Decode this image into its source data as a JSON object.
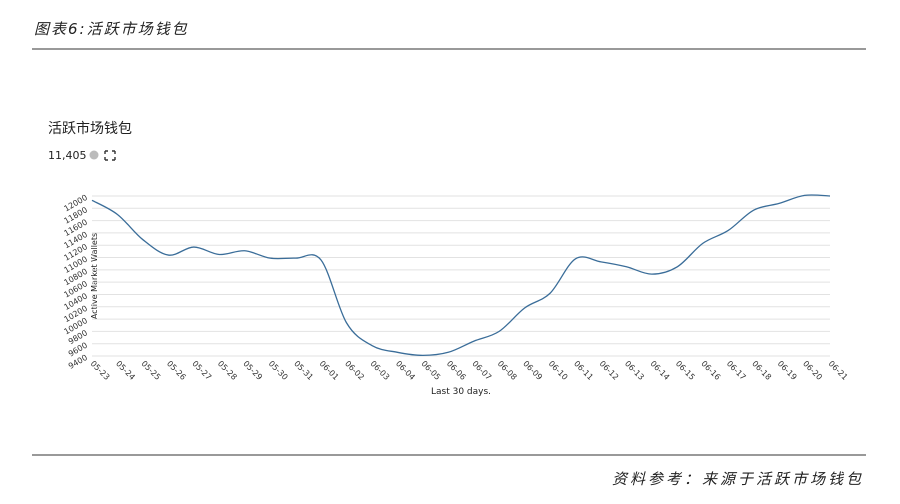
{
  "header": {
    "title": "图表6:活跃市场钱包"
  },
  "chart_data": {
    "type": "line",
    "title": "活跃市场钱包",
    "subtitle": "11,405",
    "y_label": "Active Market Wallets",
    "x_label": "Last 30 days.",
    "categories": [
      "05-23",
      "05-24",
      "05-25",
      "05-26",
      "05-27",
      "05-28",
      "05-29",
      "05-30",
      "05-31",
      "06-01",
      "06-02",
      "06-03",
      "06-04",
      "06-05",
      "06-06",
      "06-07",
      "06-08",
      "06-09",
      "06-10",
      "06-11",
      "06-12",
      "06-13",
      "06-14",
      "06-15",
      "06-16",
      "06-17",
      "06-18",
      "06-19",
      "06-20",
      "06-21"
    ],
    "series": [
      {
        "name": "Active Market Wallets",
        "color": "#3a6d99",
        "values": [
          11930,
          11700,
          11290,
          11040,
          11170,
          11050,
          11110,
          10990,
          10990,
          10960,
          9940,
          9570,
          9460,
          9410,
          9460,
          9640,
          9800,
          10180,
          10420,
          10980,
          10930,
          10850,
          10730,
          10850,
          11230,
          11440,
          11770,
          11880,
          12010,
          12000
        ]
      }
    ],
    "ylim": [
      9400,
      12000
    ],
    "yticks": [
      9400,
      9600,
      9800,
      10000,
      10200,
      10400,
      10600,
      10800,
      11000,
      11200,
      11400,
      11600,
      11800,
      12000
    ],
    "grid": true
  },
  "footer": {
    "source": "资料参考：来源于活跃市场钱包"
  }
}
